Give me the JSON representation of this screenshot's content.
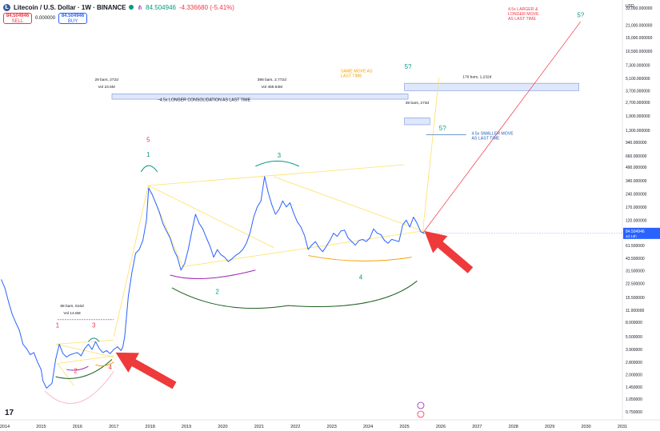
{
  "header": {
    "symbol_logo": "Ł",
    "title": "Litecoin / U.S. Dollar · 1W · BINANCE",
    "price": "84.504946",
    "change": "-4.336680 (-5.41%)",
    "sell_price": "84.504946",
    "sell_label": "SELL",
    "spread": "0.000000",
    "buy_price": "84.504946",
    "buy_label": "BUY"
  },
  "colors": {
    "price_line": "#2962ff",
    "yellow": "#ffe066",
    "red": "#f23645",
    "green": "#089981",
    "purple": "#9c27b0",
    "dark_green": "#1b5e20",
    "orange": "#f4a100",
    "pink": "#f8bbd0",
    "light_blue_box": "#dfe7fb",
    "axis_text": "#131722"
  },
  "chart_data": {
    "type": "line",
    "title": "Litecoin / U.S. Dollar · 1W · BINANCE",
    "xlabel": "",
    "ylabel": "",
    "yscale": "log",
    "currency_label": "USD",
    "x_ticks": [
      "2014",
      "2015",
      "2016",
      "2017",
      "2018",
      "2019",
      "2020",
      "2021",
      "2022",
      "2023",
      "2024",
      "2025",
      "2026",
      "2027",
      "2028",
      "2029",
      "2030",
      "2031"
    ],
    "y_ticks": [
      "33,000.000000",
      "21,000.000000",
      "15,000.000000",
      "10,500.000000",
      "7,300.000000",
      "5,100.000000",
      "3,700.000000",
      "2,700.000000",
      "1,900.000000",
      "1,300.000000",
      "940.000000",
      "660.000000",
      "490.000000",
      "340.000000",
      "240.000000",
      "170.000000",
      "120.000000",
      "61.500000",
      "43.500000",
      "31.500000",
      "22.500000",
      "15.500000",
      "11.000000",
      "8.000000",
      "5.500000",
      "3.900000",
      "2.800000",
      "2.000000",
      "1.450000",
      "1.050000",
      "0.750000"
    ],
    "current_price_label": "84.504946",
    "countdown_label": "4d 14h",
    "series": [
      {
        "x": [
          2013.9,
          2014.0,
          2014.1,
          2014.2,
          2014.3,
          2014.4,
          2014.5,
          2014.6,
          2014.7,
          2014.8,
          2014.9,
          2015.0,
          2015.05,
          2015.15,
          2015.3,
          2015.4,
          2015.5,
          2015.6,
          2015.7,
          2015.8,
          2015.9,
          2016.0,
          2016.1,
          2016.2,
          2016.3,
          2016.4,
          2016.5,
          2016.6,
          2016.7,
          2016.8,
          2016.9,
          2017.0,
          2017.1,
          2017.2,
          2017.25,
          2017.3,
          2017.4,
          2017.5,
          2017.6,
          2017.7,
          2017.8,
          2017.9,
          2017.96,
          2018.05,
          2018.15,
          2018.25,
          2018.35,
          2018.45,
          2018.55,
          2018.65,
          2018.75,
          2018.85,
          2018.95,
          2019.05,
          2019.15,
          2019.25,
          2019.35,
          2019.45,
          2019.55,
          2019.65,
          2019.75,
          2019.85,
          2019.95,
          2020.05,
          2020.15,
          2020.25,
          2020.35,
          2020.45,
          2020.55,
          2020.65,
          2020.75,
          2020.85,
          2020.95,
          2021.05,
          2021.15,
          2021.25,
          2021.35,
          2021.45,
          2021.55,
          2021.65,
          2021.75,
          2021.85,
          2021.95,
          2022.05,
          2022.15,
          2022.25,
          2022.35,
          2022.45,
          2022.55,
          2022.65,
          2022.75,
          2022.85,
          2022.95,
          2023.05,
          2023.15,
          2023.25,
          2023.35,
          2023.45,
          2023.55,
          2023.65,
          2023.75,
          2023.85,
          2023.95,
          2024.05,
          2024.15,
          2024.25,
          2024.35,
          2024.45,
          2024.55,
          2024.65,
          2024.75,
          2024.85,
          2024.95,
          2025.05,
          2025.15,
          2025.25,
          2025.35,
          2025.45,
          2025.55
        ],
        "values": [
          25,
          20,
          14,
          10,
          8,
          6.5,
          4.5,
          4.0,
          3.4,
          3.6,
          2.8,
          2.3,
          1.7,
          1.4,
          1.6,
          3.0,
          4.5,
          3.5,
          3.2,
          3.4,
          3.5,
          3.6,
          3.3,
          4.0,
          4.5,
          3.9,
          4.8,
          4.0,
          3.6,
          3.8,
          3.5,
          3.9,
          4.2,
          3.8,
          4.2,
          5.5,
          16,
          30,
          50,
          55,
          70,
          120,
          280,
          240,
          190,
          150,
          110,
          90,
          75,
          55,
          45,
          32,
          38,
          55,
          90,
          140,
          110,
          95,
          75,
          60,
          45,
          55,
          48,
          45,
          40,
          43,
          47,
          50,
          55,
          65,
          85,
          130,
          170,
          200,
          380,
          250,
          180,
          140,
          160,
          200,
          170,
          190,
          145,
          115,
          100,
          80,
          55,
          62,
          68,
          58,
          52,
          60,
          70,
          85,
          78,
          90,
          92,
          75,
          68,
          62,
          70,
          72,
          68,
          75,
          95,
          85,
          82,
          70,
          65,
          72,
          70,
          68,
          105,
          120,
          100,
          130,
          110,
          88,
          84.5
        ]
      }
    ],
    "annotations": [
      {
        "text": "1",
        "x": 2015.45,
        "y": 7.0,
        "color": "#f23645"
      },
      {
        "text": "2",
        "x": 2015.95,
        "y": 2.1,
        "color": "#f23645"
      },
      {
        "text": "3",
        "x": 2016.45,
        "y": 7.0,
        "color": "#f23645"
      },
      {
        "text": "4",
        "x": 2016.9,
        "y": 2.3,
        "color": "#f23645"
      },
      {
        "text": "5",
        "x": 2017.95,
        "y": 950,
        "color": "#f23645"
      },
      {
        "text": "1",
        "x": 2017.95,
        "y": 640,
        "color": "#089981"
      },
      {
        "text": "2",
        "x": 2019.85,
        "y": 17,
        "color": "#089981"
      },
      {
        "text": "3",
        "x": 2021.55,
        "y": 630,
        "color": "#089981"
      },
      {
        "text": "4",
        "x": 2023.8,
        "y": 25,
        "color": "#089981"
      },
      {
        "text": "5?",
        "x": 2025.1,
        "y": 6600,
        "color": "#089981"
      },
      {
        "text": "5?",
        "x": 2026.05,
        "y": 1300,
        "color": "#089981"
      },
      {
        "text": "5?",
        "x": 2029.85,
        "y": 26000,
        "color": "#089981"
      }
    ],
    "text_notes": [
      {
        "lines": [
          "29 bars, 272d",
          "Vol 23.5M"
        ],
        "x": 2016.8,
        "y": 4800
      },
      {
        "lines": [
          "396 bars, 2,772d",
          "Vol 469.84M"
        ],
        "x": 2021.35,
        "y": 4800
      },
      {
        "lines": [
          "176 bars, 1,232d"
        ],
        "x": 2027.0,
        "y": 5200
      },
      {
        "lines": [
          "39 bars, 273d"
        ],
        "x": 2025.35,
        "y": 2600
      },
      {
        "lines": [
          "88 bars, 616d",
          "Vol 14.6M"
        ],
        "x": 2015.85,
        "y": 12
      }
    ],
    "callouts": [
      {
        "lines": [
          "~4.5x LONGER CONSOLIDATION  AS LAST TIME"
        ],
        "x": 2018.2,
        "y": 2800,
        "color": "#131722"
      },
      {
        "lines": [
          "SAME MOVE AS",
          "LAST TIME"
        ],
        "x": 2023.25,
        "y": 6000,
        "color": "#f4a100"
      },
      {
        "lines": [
          "4.5x LARGER &",
          "LONGER MOVE",
          "AS LAST TIME"
        ],
        "x": 2027.85,
        "y": 31000,
        "color": "#f23645"
      },
      {
        "lines": [
          "4.5x SMALLER MOVE",
          "AS LAST TIME"
        ],
        "x": 2026.85,
        "y": 1150,
        "color": "#1e5db3"
      }
    ]
  }
}
